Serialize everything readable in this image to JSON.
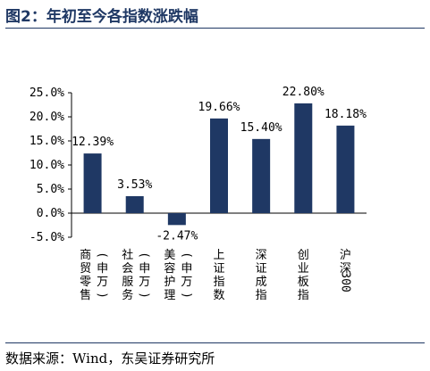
{
  "figure": {
    "title": "图2：年初至今各指数涨跌幅",
    "source": "数据来源：Wind，东吴证券研究所"
  },
  "chart_data": {
    "type": "bar",
    "title": "",
    "xlabel": "",
    "ylabel": "",
    "categories": [
      "商贸零售(申万)",
      "社会服务(申万)",
      "美容护理(申万)",
      "上证指数",
      "深证成指",
      "创业板指",
      "沪深300"
    ],
    "category_lines": [
      [
        "商",
        "贸",
        "零",
        "售",
        "(",
        "申",
        "万",
        ")"
      ],
      [
        "社",
        "会",
        "服",
        "务",
        "(",
        "申",
        "万",
        ")"
      ],
      [
        "美",
        "容",
        "护",
        "理",
        "(",
        "申",
        "万",
        ")"
      ],
      [
        "上",
        "证",
        "指",
        "数"
      ],
      [
        "深",
        "证",
        "成",
        "指"
      ],
      [
        "创",
        "业",
        "板",
        "指"
      ],
      [
        "沪",
        "深",
        "300"
      ]
    ],
    "values": [
      12.39,
      3.53,
      -2.47,
      19.66,
      15.4,
      22.8,
      18.18
    ],
    "value_labels": [
      "12.39%",
      "3.53%",
      "-2.47%",
      "19.66%",
      "15.40%",
      "22.80%",
      "18.18%"
    ],
    "ylim": [
      -5,
      25
    ],
    "yticks": [
      25,
      20,
      15,
      10,
      5,
      0,
      -5
    ],
    "ytick_labels": [
      "25.0%",
      "20.0%",
      "15.0%",
      "10.0%",
      "5.0%",
      "0.0%",
      "-5.0%"
    ],
    "grid": false,
    "legend": "none",
    "bar_color": "#1f3864"
  }
}
